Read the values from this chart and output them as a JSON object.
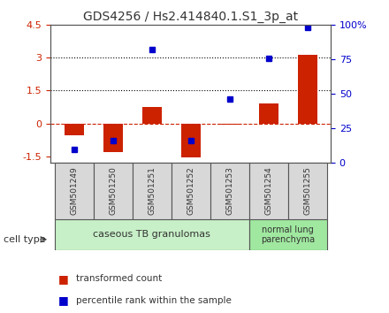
{
  "title": "GDS4256 / Hs2.414840.1.S1_3p_at",
  "samples": [
    "GSM501249",
    "GSM501250",
    "GSM501251",
    "GSM501252",
    "GSM501253",
    "GSM501254",
    "GSM501255"
  ],
  "red_values": [
    -0.55,
    -1.3,
    0.75,
    -1.55,
    -0.05,
    0.9,
    3.15
  ],
  "blue_percentiles": [
    10,
    16,
    82,
    16,
    46,
    76,
    98
  ],
  "ylim_left": [
    -1.8,
    4.5
  ],
  "ylim_right": [
    0,
    100
  ],
  "yticks_left": [
    -1.5,
    0.0,
    1.5,
    3.0,
    4.5
  ],
  "yticks_right": [
    0,
    25,
    50,
    75,
    100
  ],
  "ytick_right_labels": [
    "0",
    "25",
    "50",
    "75",
    "100%"
  ],
  "hlines": [
    3.0,
    1.5
  ],
  "hline_zero": 0.0,
  "cell_type_groups": [
    {
      "label": "caseous TB granulomas",
      "samples": [
        0,
        1,
        2,
        3,
        4
      ],
      "color": "#c8f0c8"
    },
    {
      "label": "normal lung\nparenchyma",
      "samples": [
        5,
        6
      ],
      "color": "#a0e8a0"
    }
  ],
  "cell_type_label": "cell type",
  "bar_width": 0.5,
  "red_color": "#cc2200",
  "blue_color": "#0000cc",
  "legend_red": "transformed count",
  "legend_blue": "percentile rank within the sample",
  "bg_color": "#ffffff",
  "plot_bg": "#ffffff",
  "axis_color": "#555555",
  "grid_color": "#000000",
  "hline_zero_color": "#cc2200",
  "right_axis_color": "#0000cc",
  "sample_bg": "#d8d8d8"
}
